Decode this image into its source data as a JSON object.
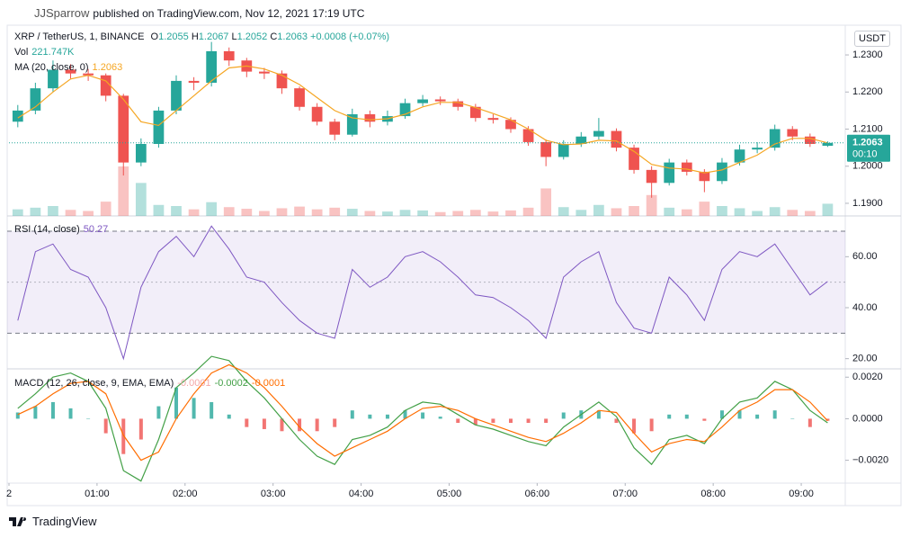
{
  "header": {
    "author": "JJSparrow",
    "published": "published on TradingView.com, Nov 12, 2021 17:19 UTC"
  },
  "footer": "TradingView",
  "chart_data": [
    {
      "type": "candlestick",
      "title": "XRP / TetherUS, 1, BINANCE",
      "legend_letters": {
        "open": "O",
        "high": "H",
        "low": "L",
        "close": "C"
      },
      "change": "+0.0008 (+0.07%)",
      "currency": "USDT",
      "countdown": "00:10",
      "up_color": "#26a69a",
      "down_color": "#ef5350",
      "x": [
        0.1,
        0.3,
        0.5,
        0.7,
        0.9,
        1.1,
        1.3,
        1.5,
        1.7,
        1.9,
        2.1,
        2.3,
        2.5,
        2.7,
        2.9,
        3.1,
        3.3,
        3.5,
        3.7,
        3.9,
        4.1,
        4.3,
        4.5,
        4.7,
        4.9,
        5.1,
        5.3,
        5.5,
        5.7,
        5.9,
        6.1,
        6.3,
        6.5,
        6.7,
        6.9,
        7.1,
        7.3,
        7.5,
        7.7,
        7.9,
        8.1,
        8.3,
        8.5,
        8.7,
        8.9,
        9.1,
        9.3
      ],
      "open": [
        1.212,
        1.215,
        1.221,
        1.226,
        1.225,
        1.2245,
        1.219,
        1.201,
        1.206,
        1.215,
        1.223,
        1.2225,
        1.231,
        1.2285,
        1.2255,
        1.225,
        1.221,
        1.216,
        1.212,
        1.2085,
        1.214,
        1.212,
        1.2135,
        1.217,
        1.218,
        1.2175,
        1.216,
        1.213,
        1.2125,
        1.21,
        1.2065,
        1.2025,
        1.206,
        1.208,
        1.2095,
        1.205,
        1.199,
        1.1955,
        1.201,
        1.1985,
        1.196,
        1.201,
        1.2045,
        1.205,
        1.21,
        1.208,
        1.2055
      ],
      "high": [
        1.2165,
        1.2225,
        1.2285,
        1.2275,
        1.2262,
        1.225,
        1.2195,
        1.2075,
        1.216,
        1.2245,
        1.224,
        1.2335,
        1.232,
        1.2292,
        1.2265,
        1.2258,
        1.2215,
        1.217,
        1.2128,
        1.2155,
        1.215,
        1.215,
        1.2182,
        1.2192,
        1.2188,
        1.2182,
        1.2168,
        1.214,
        1.2132,
        1.2108,
        1.2072,
        1.207,
        1.2092,
        1.213,
        1.2102,
        1.2058,
        1.2,
        1.202,
        1.2018,
        1.1992,
        1.2022,
        1.2058,
        1.2065,
        1.2112,
        1.2108,
        1.2088,
        1.2067
      ],
      "low": [
        1.2105,
        1.214,
        1.22,
        1.2235,
        1.223,
        1.2175,
        1.1975,
        1.2,
        1.205,
        1.214,
        1.2205,
        1.2215,
        1.227,
        1.224,
        1.2235,
        1.2195,
        1.215,
        1.211,
        1.207,
        1.208,
        1.2105,
        1.211,
        1.2128,
        1.2162,
        1.2165,
        1.215,
        1.212,
        1.2115,
        1.209,
        1.2055,
        1.2,
        1.2018,
        1.2052,
        1.2072,
        1.204,
        1.198,
        1.1915,
        1.1948,
        1.1975,
        1.193,
        1.1952,
        1.2002,
        1.2035,
        1.2042,
        1.207,
        1.2052,
        1.2052
      ],
      "close": [
        1.215,
        1.221,
        1.226,
        1.225,
        1.2245,
        1.219,
        1.201,
        1.206,
        1.215,
        1.223,
        1.2225,
        1.231,
        1.2285,
        1.2255,
        1.225,
        1.221,
        1.216,
        1.212,
        1.2085,
        1.214,
        1.212,
        1.2135,
        1.217,
        1.218,
        1.2175,
        1.216,
        1.213,
        1.2125,
        1.21,
        1.2065,
        1.2025,
        1.206,
        1.208,
        1.2095,
        1.205,
        1.199,
        1.1955,
        1.201,
        1.1985,
        1.196,
        1.201,
        1.2045,
        1.205,
        1.21,
        1.208,
        1.206,
        1.2063
      ],
      "volume": {
        "name": "Vol",
        "last_label": "221.747K",
        "values": [
          120000,
          150000,
          180000,
          110000,
          90000,
          260000,
          900000,
          600000,
          200000,
          180000,
          120000,
          250000,
          160000,
          130000,
          90000,
          140000,
          170000,
          120000,
          150000,
          130000,
          90000,
          80000,
          110000,
          100000,
          70000,
          90000,
          110000,
          80000,
          100000,
          150000,
          500000,
          160000,
          110000,
          200000,
          140000,
          180000,
          380000,
          150000,
          120000,
          260000,
          180000,
          140000,
          90000,
          160000,
          110000,
          90000,
          221747
        ]
      },
      "ma": {
        "name": "MA (20, close, 0)",
        "color": "#f5a623",
        "values": [
          1.213,
          1.216,
          1.22,
          1.2235,
          1.2245,
          1.223,
          1.218,
          1.212,
          1.211,
          1.215,
          1.219,
          1.223,
          1.2265,
          1.227,
          1.2262,
          1.2245,
          1.222,
          1.2185,
          1.215,
          1.213,
          1.2125,
          1.2128,
          1.214,
          1.216,
          1.2172,
          1.2172,
          1.2158,
          1.2142,
          1.2125,
          1.21,
          1.207,
          1.2058,
          1.206,
          1.207,
          1.2068,
          1.204,
          1.2005,
          1.1995,
          1.1992,
          1.1982,
          1.199,
          1.201,
          1.203,
          1.206,
          1.2075,
          1.2075,
          1.2063
        ]
      },
      "ylim": [
        1.1866,
        1.2368
      ],
      "yticks": [
        {
          "value": 1.19,
          "label": "1.1900"
        },
        {
          "value": 1.2,
          "label": "1.2000"
        },
        {
          "value": 1.21,
          "label": "1.2100"
        },
        {
          "value": 1.22,
          "label": "1.2200"
        },
        {
          "value": 1.23,
          "label": "1.2300"
        }
      ],
      "xlim": [
        0,
        9.5
      ],
      "xticks": [
        {
          "value": 0,
          "label": "2"
        },
        {
          "value": 1,
          "label": "01:00"
        },
        {
          "value": 2,
          "label": "02:00"
        },
        {
          "value": 3,
          "label": "03:00"
        },
        {
          "value": 4,
          "label": "04:00"
        },
        {
          "value": 5,
          "label": "05:00"
        },
        {
          "value": 6,
          "label": "06:00"
        },
        {
          "value": 7,
          "label": "07:00"
        },
        {
          "value": 8,
          "label": "08:00"
        },
        {
          "value": 9,
          "label": "09:00"
        }
      ]
    },
    {
      "type": "line",
      "name": "RSI (14, close)",
      "color": "#7e57c2",
      "band_fill": "rgba(126,87,194,0.10)",
      "bands": [
        70,
        50,
        30
      ],
      "values": [
        35,
        62,
        65,
        55,
        52,
        40,
        20,
        48,
        62,
        68,
        60,
        72,
        63,
        52,
        50,
        42,
        35,
        30,
        28,
        55,
        48,
        52,
        60,
        62,
        58,
        52,
        45,
        44,
        40,
        35,
        28,
        52,
        58,
        62,
        42,
        32,
        30,
        52,
        45,
        35,
        55,
        62,
        60,
        65,
        55,
        45,
        50.27
      ],
      "ylim": [
        16,
        76
      ],
      "yticks": [
        {
          "value": 20,
          "label": "20.00"
        },
        {
          "value": 40,
          "label": "40.00"
        },
        {
          "value": 60,
          "label": "60.00"
        }
      ]
    },
    {
      "type": "macd",
      "name": "MACD (12, 26, close, 9, EMA, EMA)",
      "histogram": {
        "up_color": "#26a69a",
        "down_color": "#ef5350",
        "legend_color": "#f4a8a8",
        "values": [
          0.0003,
          0.0006,
          0.0008,
          0.0005,
          0.0,
          -0.0007,
          -0.0017,
          -0.001,
          0.0006,
          0.0015,
          0.001,
          0.0008,
          0.0002,
          -0.0004,
          -0.0005,
          -0.0006,
          -0.0006,
          -0.0006,
          -0.0004,
          0.0004,
          0.0002,
          0.0002,
          0.0004,
          0.0003,
          0.0001,
          -0.0002,
          -0.0003,
          -0.0002,
          -0.0002,
          -0.0002,
          -0.0002,
          0.0003,
          0.0004,
          0.0004,
          -0.0002,
          -0.0007,
          -0.0006,
          0.0002,
          0.0002,
          -0.0001,
          0.0004,
          0.0004,
          0.0002,
          0.0004,
          0.0,
          -0.0004,
          -0.0001
        ]
      },
      "macd": {
        "color": "#43a047",
        "values": [
          0.0005,
          0.0012,
          0.002,
          0.0022,
          0.0018,
          0.0005,
          -0.0025,
          -0.003,
          -0.001,
          0.0015,
          0.0022,
          0.003,
          0.0028,
          0.0018,
          0.001,
          0.0,
          -0.001,
          -0.0018,
          -0.0022,
          -0.001,
          -0.0008,
          -0.0004,
          0.0004,
          0.0008,
          0.0007,
          0.0002,
          -0.0003,
          -0.0005,
          -0.0008,
          -0.0011,
          -0.0013,
          -0.0004,
          0.0002,
          0.0008,
          0.0001,
          -0.0014,
          -0.0022,
          -0.001,
          -0.0008,
          -0.0012,
          0.0,
          0.0008,
          0.001,
          0.0018,
          0.0014,
          0.0004,
          -0.0002
        ]
      },
      "signal": {
        "color": "#ff6d00",
        "values": [
          0.0002,
          0.0006,
          0.0012,
          0.0017,
          0.0018,
          0.0012,
          -0.0008,
          -0.002,
          -0.0016,
          0.0,
          0.0012,
          0.0022,
          0.0026,
          0.0022,
          0.0015,
          0.0006,
          -0.0004,
          -0.0012,
          -0.0018,
          -0.0014,
          -0.001,
          -0.0006,
          0.0,
          0.0005,
          0.0006,
          0.0004,
          0.0,
          -0.0003,
          -0.0006,
          -0.0009,
          -0.0011,
          -0.0007,
          -0.0002,
          0.0004,
          0.0003,
          -0.0007,
          -0.0016,
          -0.0012,
          -0.001,
          -0.0011,
          -0.0004,
          0.0004,
          0.0008,
          0.0014,
          0.0014,
          0.0008,
          -0.0001
        ]
      },
      "ylim": [
        -0.0031,
        0.0024
      ],
      "yticks": [
        {
          "value": -0.002,
          "label": "−0.0020"
        },
        {
          "value": 0,
          "label": "0.0000"
        },
        {
          "value": 0.002,
          "label": "0.0020"
        }
      ]
    }
  ]
}
